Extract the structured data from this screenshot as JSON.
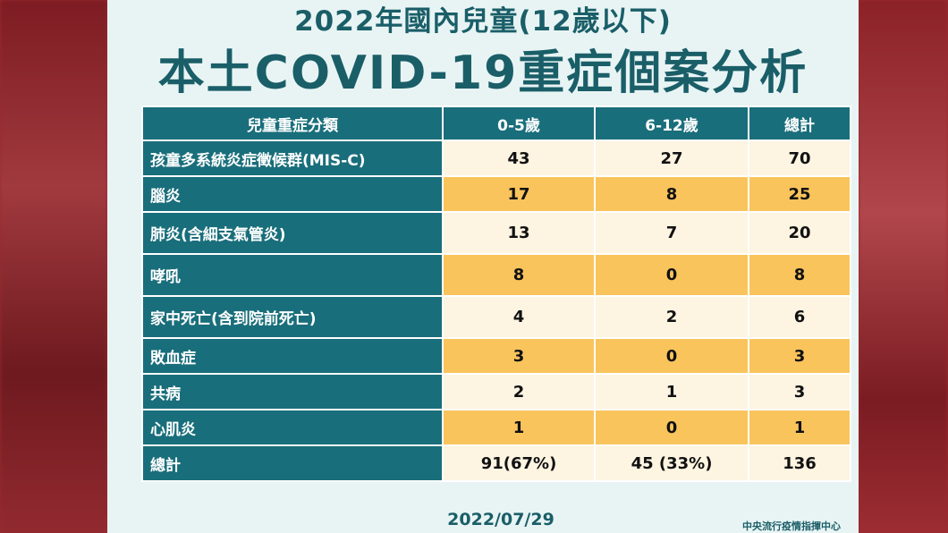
{
  "title_line1": "2022年國內兒童(12歲以下)",
  "title_line2": "本土COVID-19重症個案分析",
  "table": {
    "headers": [
      "兒童重症分類",
      "0-5歲",
      "6-12歲",
      "總計"
    ],
    "rows": [
      {
        "label": "孩童多系統炎症徵候群(MIS-C)",
        "age0_5": "43",
        "age6_12": "27",
        "total": "70"
      },
      {
        "label": "腦炎",
        "age0_5": "17",
        "age6_12": "8",
        "total": "25"
      },
      {
        "label": "肺炎(含細支氣管炎)",
        "age0_5": "13",
        "age6_12": "7",
        "total": "20"
      },
      {
        "label": "哮吼",
        "age0_5": "8",
        "age6_12": "0",
        "total": "8"
      },
      {
        "label": "家中死亡(含到院前死亡)",
        "age0_5": "4",
        "age6_12": "2",
        "total": "6"
      },
      {
        "label": "敗血症",
        "age0_5": "3",
        "age6_12": "0",
        "total": "3"
      },
      {
        "label": "共病",
        "age0_5": "2",
        "age6_12": "1",
        "total": "3"
      },
      {
        "label": "心肌炎",
        "age0_5": "1",
        "age6_12": "0",
        "total": "1"
      },
      {
        "label": "總計",
        "age0_5": "91(67%)",
        "age6_12": "45 (33%)",
        "total": "136"
      }
    ]
  },
  "date": "2022/07/29",
  "organization": "中央流行疫情指揮中心",
  "colors": {
    "header_teal": "#196e7b",
    "cell_light": "#fdf4e1",
    "cell_orange": "#f9c45c",
    "title_teal": "#1a5e68",
    "background_red": "#9a2a2f"
  }
}
